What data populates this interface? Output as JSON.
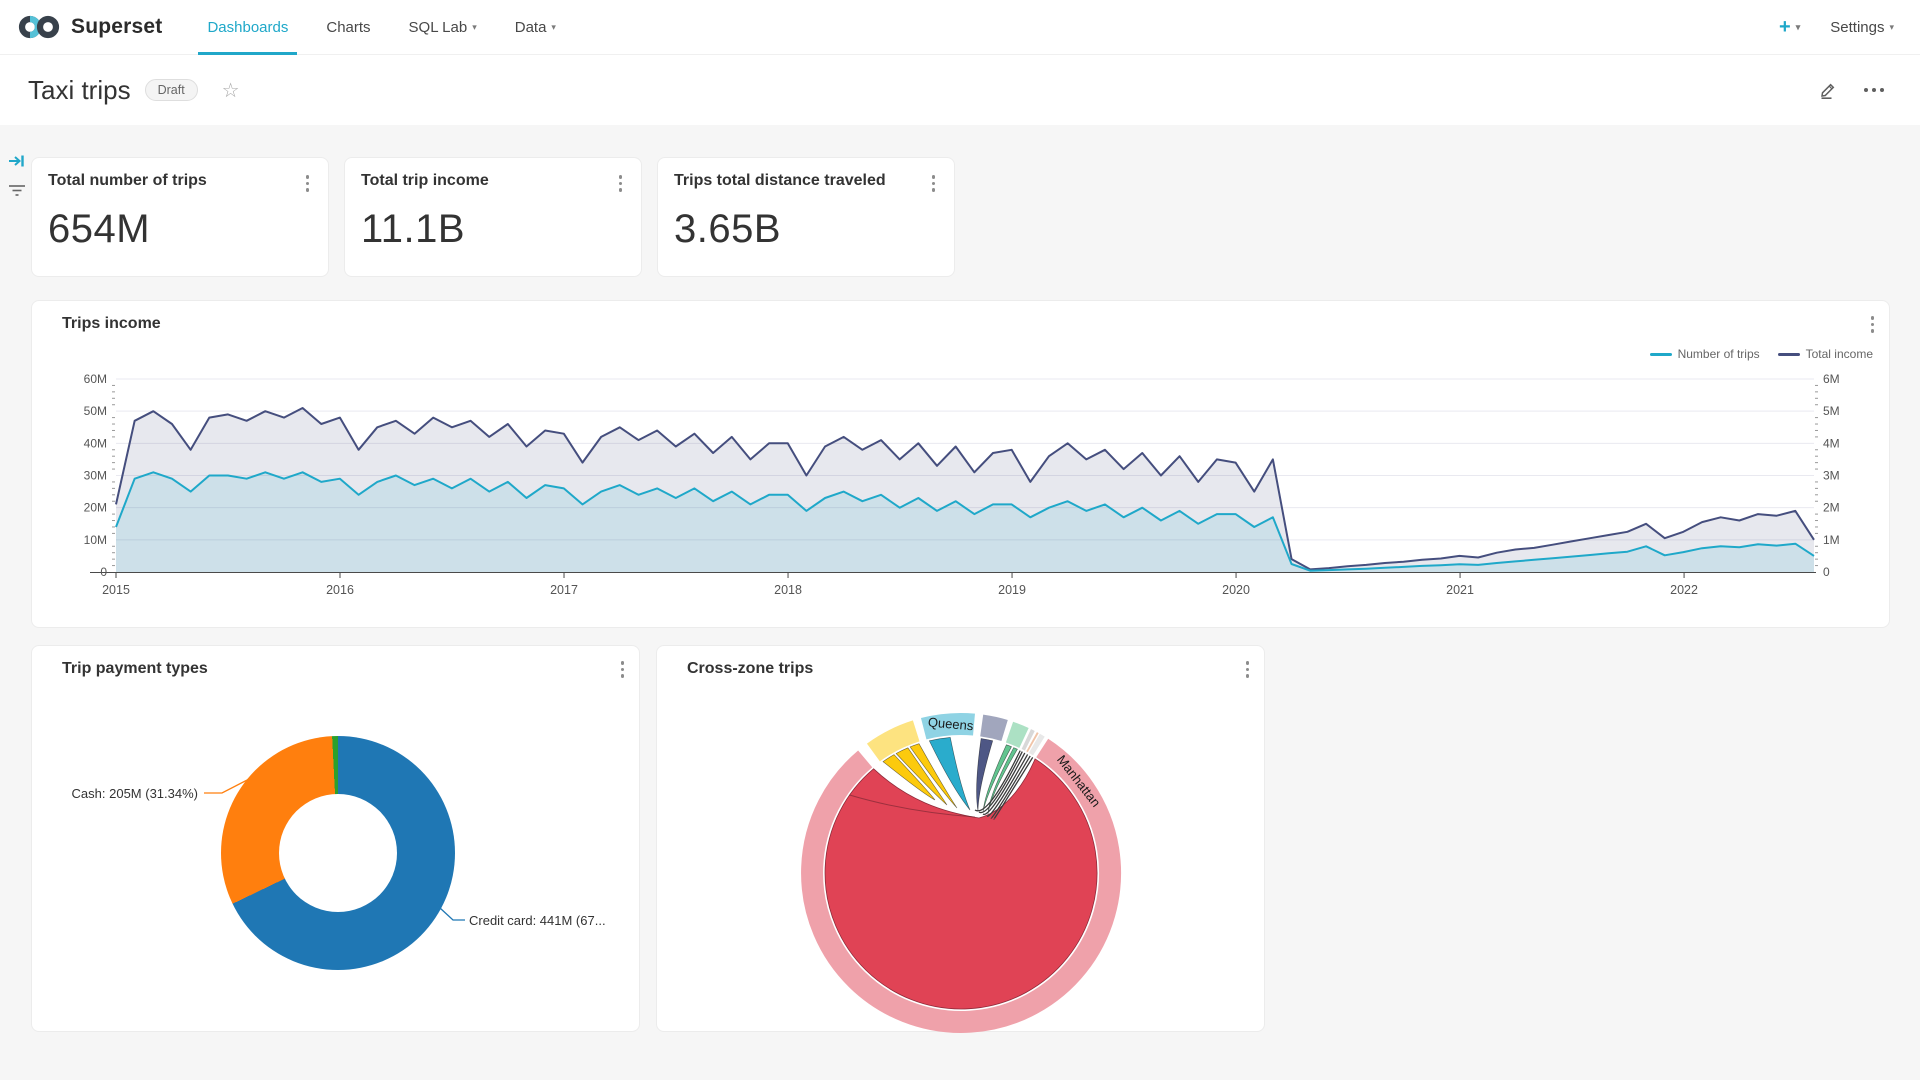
{
  "navbar": {
    "brand": "Superset",
    "tabs": [
      {
        "label": "Dashboards",
        "active": true,
        "caret": false
      },
      {
        "label": "Charts",
        "active": false,
        "caret": false
      },
      {
        "label": "SQL Lab",
        "active": false,
        "caret": true
      },
      {
        "label": "Data",
        "active": false,
        "caret": true
      }
    ],
    "new_button": "+",
    "settings_label": "Settings",
    "accent_color": "#1FA8C9"
  },
  "header": {
    "title": "Taxi trips",
    "badge": "Draft"
  },
  "kpis": [
    {
      "title": "Total number of trips",
      "value": "654M"
    },
    {
      "title": "Total trip income",
      "value": "11.1B"
    },
    {
      "title": "Trips total distance traveled",
      "value": "3.65B"
    }
  ],
  "chart_data": [
    {
      "type": "area",
      "title": "Trips income",
      "x_tick_labels": [
        "2015",
        "2016",
        "2017",
        "2018",
        "2019",
        "2020",
        "2021",
        "2022"
      ],
      "x_start_year": 2015,
      "x_end_year": 2022.58,
      "y_left": {
        "tick_labels": [
          "0",
          "10M",
          "20M",
          "30M",
          "40M",
          "50M",
          "60M"
        ],
        "max": 60
      },
      "y_right": {
        "tick_labels": [
          "0",
          "1M",
          "2M",
          "3M",
          "4M",
          "5M",
          "6M"
        ],
        "max": 6
      },
      "grid": true,
      "legend_position": "top-right",
      "series": [
        {
          "name": "Total income",
          "color": "#454E7E",
          "axis": "left",
          "values": [
            21,
            47,
            50,
            46,
            38,
            48,
            49,
            47,
            50,
            48,
            51,
            46,
            48,
            38,
            45,
            47,
            43,
            48,
            45,
            47,
            42,
            46,
            39,
            44,
            43,
            34,
            42,
            45,
            41,
            44,
            39,
            43,
            37,
            42,
            35,
            40,
            40,
            30,
            39,
            42,
            38,
            41,
            35,
            40,
            33,
            39,
            31,
            37,
            38,
            28,
            36,
            40,
            35,
            38,
            32,
            37,
            30,
            36,
            28,
            35,
            34,
            25,
            35,
            4,
            0.8,
            1.2,
            1.8,
            2.2,
            2.8,
            3.2,
            3.8,
            4.2,
            5,
            4.5,
            6,
            7,
            7.5,
            8.5,
            9.5,
            10.5,
            11.5,
            12.5,
            15,
            10.5,
            12.5,
            15.5,
            17,
            16,
            18,
            17.5,
            19,
            10
          ]
        },
        {
          "name": "Number of trips",
          "color": "#1FA8C9",
          "axis": "right",
          "values": [
            1.4,
            2.9,
            3.1,
            2.9,
            2.5,
            3.0,
            3.0,
            2.9,
            3.1,
            2.9,
            3.1,
            2.8,
            2.9,
            2.4,
            2.8,
            3.0,
            2.7,
            2.9,
            2.6,
            2.9,
            2.5,
            2.8,
            2.3,
            2.7,
            2.6,
            2.1,
            2.5,
            2.7,
            2.4,
            2.6,
            2.3,
            2.6,
            2.2,
            2.5,
            2.1,
            2.4,
            2.4,
            1.9,
            2.3,
            2.5,
            2.2,
            2.4,
            2.0,
            2.3,
            1.9,
            2.2,
            1.8,
            2.1,
            2.1,
            1.7,
            2.0,
            2.2,
            1.9,
            2.1,
            1.7,
            2.0,
            1.6,
            1.9,
            1.5,
            1.8,
            1.8,
            1.4,
            1.7,
            0.25,
            0.04,
            0.06,
            0.08,
            0.1,
            0.13,
            0.16,
            0.19,
            0.21,
            0.24,
            0.22,
            0.28,
            0.33,
            0.38,
            0.43,
            0.48,
            0.53,
            0.58,
            0.63,
            0.8,
            0.52,
            0.62,
            0.74,
            0.8,
            0.77,
            0.86,
            0.82,
            0.88,
            0.5
          ]
        }
      ]
    },
    {
      "type": "pie",
      "title": "Trip payment types",
      "donut": true,
      "start_angle_deg": 1.5,
      "slices": [
        {
          "label": "Credit card",
          "value": "441M",
          "pct": 67.44,
          "color": "#1F77B4"
        },
        {
          "label": "Cash",
          "value": "205M",
          "pct": 31.34,
          "color": "#FF7F0E"
        },
        {
          "label": "",
          "value": "",
          "pct": 0.82,
          "color": "#2CA02C"
        },
        {
          "label": "",
          "value": "",
          "pct": 0.4,
          "color": "#D6456C"
        }
      ],
      "callouts": {
        "cash": "Cash: 205M (31.34%)",
        "credit": "Credit card: 441M (67..."
      }
    },
    {
      "type": "chord",
      "title": "Cross-zone trips",
      "zone_labels": [
        "Queens",
        "Manhattan"
      ],
      "segments": [
        {
          "name": "Manhattan",
          "ring_color": "#EFA1AA",
          "start_deg": 33,
          "end_deg": 320
        },
        {
          "name": "",
          "ring_color": "#FDE380",
          "start_deg": -36,
          "end_deg": -17.5
        },
        {
          "name": "Queens",
          "ring_color": "#8FD3E4",
          "start_deg": -14.5,
          "end_deg": 5
        },
        {
          "name": "",
          "ring_color": "#A1A6BD",
          "start_deg": 8,
          "end_deg": 17
        },
        {
          "name": "",
          "ring_color": "#ACE1C4",
          "start_deg": 19,
          "end_deg": 25
        },
        {
          "name": "",
          "ring_color": "#D8D8D8",
          "start_deg": 26,
          "end_deg": 27.5
        },
        {
          "name": "",
          "ring_color": "#F0C4A8",
          "start_deg": 28.3,
          "end_deg": 29
        },
        {
          "name": "",
          "ring_color": "#E8E8E8",
          "start_deg": 29.5,
          "end_deg": 31.5
        }
      ],
      "self_chord": {
        "zone": "Manhattan",
        "color": "#E04355",
        "stroke": "#8f2b3a"
      },
      "ribbons": [
        {
          "color": "#FCC700",
          "base": [
            -35,
            -29.5
          ],
          "apex": [
            278,
            140
          ]
        },
        {
          "color": "#FCC700",
          "base": [
            -28.5,
            -23
          ],
          "apex": [
            290,
            145
          ]
        },
        {
          "color": "#FCC700",
          "base": [
            -22,
            -18
          ],
          "apex": [
            300,
            148
          ]
        },
        {
          "color": "#1FA8C9",
          "base": [
            -13.5,
            -4.5
          ],
          "apex": [
            313,
            150
          ]
        },
        {
          "color": "#454E7E",
          "base": [
            8.5,
            13.5
          ],
          "apex": [
            321,
            151
          ]
        },
        {
          "color": "#5AC189",
          "base": [
            19.5,
            21.8
          ],
          "apex": [
            326,
            152
          ]
        },
        {
          "color": "#5AC189",
          "base": [
            22.8,
            24.5
          ],
          "apex": [
            331,
            154
          ]
        }
      ],
      "thin_chords": [
        {
          "angle": 25.8,
          "apex": [
            318,
            150
          ]
        },
        {
          "angle": 26.8,
          "apex": [
            322,
            152
          ]
        },
        {
          "angle": 28.0,
          "apex": [
            326,
            154
          ]
        },
        {
          "angle": 29.3,
          "apex": [
            330,
            156
          ]
        },
        {
          "angle": 30.6,
          "apex": [
            334,
            158
          ]
        },
        {
          "angle": 31.8,
          "apex": [
            337,
            159
          ]
        }
      ],
      "labels": [
        {
          "text": "Queens",
          "angle": -4,
          "rotate": 5
        },
        {
          "text": "Manhattan",
          "angle": 52,
          "rotate": 52
        }
      ]
    }
  ]
}
